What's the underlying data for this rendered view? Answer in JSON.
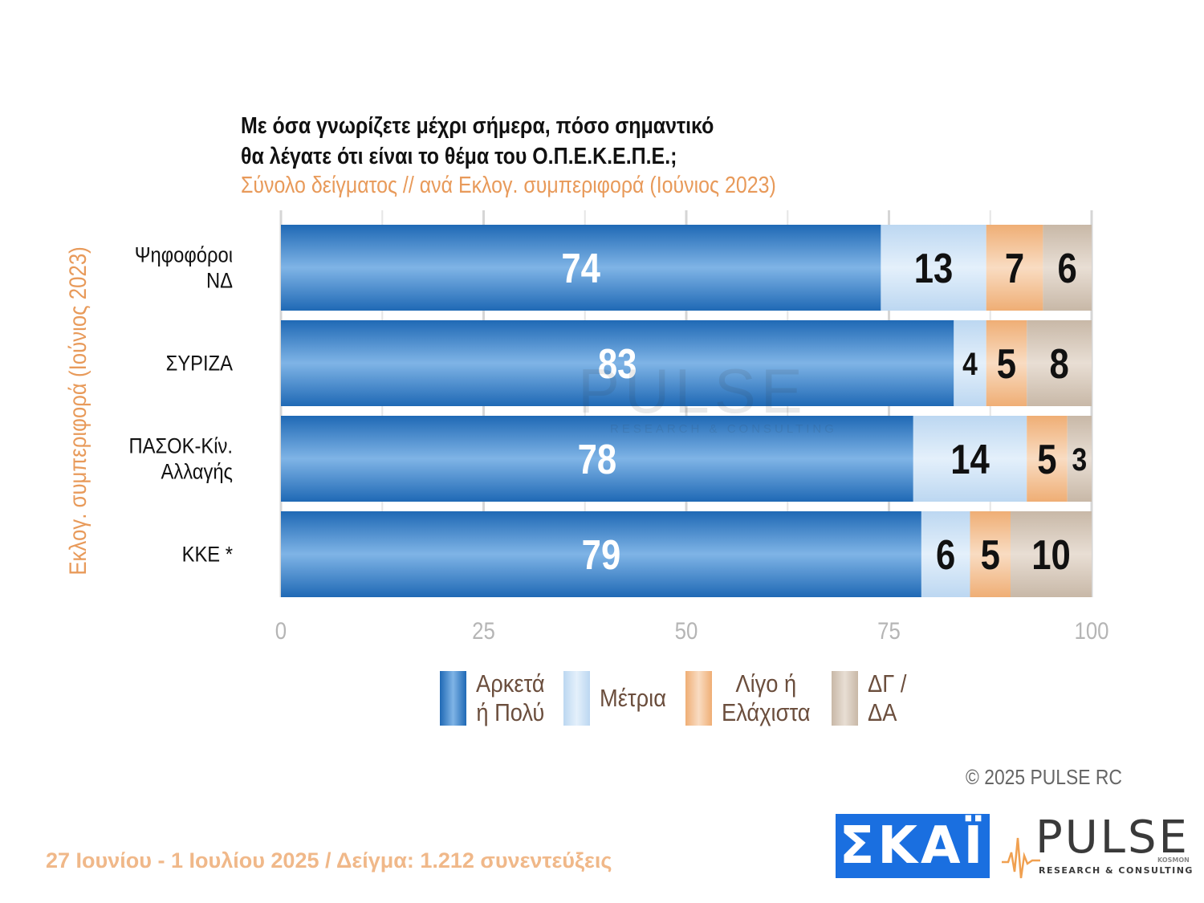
{
  "header": {
    "title_line1": "Με όσα γνωρίζετε μέχρι σήμερα, πόσο σημαντικό",
    "title_line2": "θα λέγατε ότι είναι το θέμα του  Ο.Π.Ε.Κ.Ε.Π.Ε.;",
    "subtitle": "Σύνολο δείγματος // ανά Εκλογ. συμπεριφορά (Ιούνιος 2023)"
  },
  "side_label": "Εκλογ. συμπεριφορά (Ιούνιος 2023)",
  "chart_data": {
    "type": "bar",
    "orientation": "horizontal",
    "stacked": true,
    "categories": [
      [
        "Ψηφοφόροι",
        "ΝΔ"
      ],
      [
        "ΣΥΡΙΖΑ"
      ],
      [
        "ΠΑΣΟΚ-Κίν.",
        "Αλλαγής"
      ],
      [
        "ΚΚΕ *"
      ]
    ],
    "series": [
      {
        "name": "Αρκετά ή Πολύ",
        "values": [
          74,
          83,
          78,
          79
        ],
        "color": "#3f87cc"
      },
      {
        "name": "Μέτρια",
        "values": [
          13,
          4,
          14,
          6
        ],
        "color": "#cfe3f7"
      },
      {
        "name": "Λίγο ή Ελάχιστα",
        "values": [
          7,
          5,
          5,
          5
        ],
        "color": "#f4c8a1"
      },
      {
        "name": "ΔΓ / ΔΑ",
        "values": [
          6,
          8,
          3,
          10
        ],
        "color": "#d8cbbd"
      }
    ],
    "xlim": [
      0,
      100
    ],
    "xticks": [
      0,
      25,
      50,
      75,
      100
    ],
    "grid": true,
    "legend_position": "bottom"
  },
  "legend": [
    {
      "label": "Αρκετά\nή Πολύ",
      "color": "#3f87cc"
    },
    {
      "label": "Μέτρια",
      "color": "#cfe3f7"
    },
    {
      "label": "Λίγο ή\nΕλάχιστα",
      "color": "#f4c8a1"
    },
    {
      "label": "ΔΓ /\nΔΑ",
      "color": "#d8cbbd"
    }
  ],
  "watermark": {
    "word": "PULSE",
    "tagline": "RESEARCH & CONSULTING"
  },
  "copyright": "©  2025  PULSE RC",
  "footer_note": "27 Ιουνίου - 1 Ιουλίου 2025  /  Δείγμα:  1.212 συνεντεύξεις",
  "logos": {
    "skai": "ΣΚΑΪ",
    "pulse": "PULSE",
    "pulse_tagline": "RESEARCH & CONSULTING",
    "kosmon": "KOSMON"
  }
}
